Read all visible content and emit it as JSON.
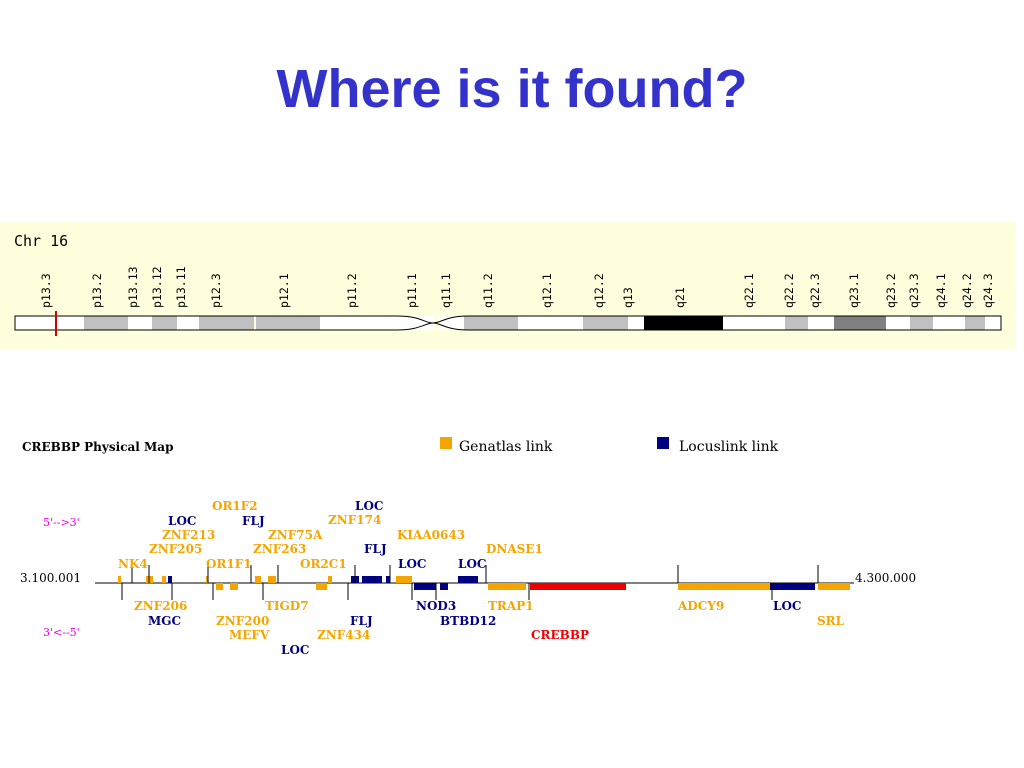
{
  "slide": {
    "title": "Where is it found?"
  },
  "ideogram": {
    "chromosome_label": "Chr 16",
    "bands": [
      {
        "name": "p13.3",
        "stain": "white"
      },
      {
        "name": "p13.2",
        "stain": "gray"
      },
      {
        "name": "p13.13",
        "stain": "white"
      },
      {
        "name": "p13.12",
        "stain": "gray"
      },
      {
        "name": "p13.11",
        "stain": "white"
      },
      {
        "name": "p12.3",
        "stain": "gray"
      },
      {
        "name": "p12.1",
        "stain": "gray"
      },
      {
        "name": "p11.2",
        "stain": "white"
      },
      {
        "name": "p11.1",
        "stain": "centromere"
      },
      {
        "name": "q11.1",
        "stain": "centromere"
      },
      {
        "name": "q11.2",
        "stain": "gray"
      },
      {
        "name": "q12.1",
        "stain": "white"
      },
      {
        "name": "q12.2",
        "stain": "gray"
      },
      {
        "name": "q13",
        "stain": "white"
      },
      {
        "name": "q21",
        "stain": "black"
      },
      {
        "name": "q22.1",
        "stain": "white"
      },
      {
        "name": "q22.2",
        "stain": "gray"
      },
      {
        "name": "q22.3",
        "stain": "white"
      },
      {
        "name": "q23.1",
        "stain": "darkgray"
      },
      {
        "name": "q23.2",
        "stain": "white"
      },
      {
        "name": "q23.3",
        "stain": "gray"
      },
      {
        "name": "q24.1",
        "stain": "white"
      },
      {
        "name": "q24.2",
        "stain": "gray"
      },
      {
        "name": "q24.3",
        "stain": "white"
      }
    ],
    "marker_band": "p13.3",
    "colors": {
      "background": "#ffffdd",
      "gray": "#c0c0c0",
      "darkgray": "#808080",
      "black": "#000000",
      "marker": "#cc0000"
    }
  },
  "physical_map": {
    "title": "CREBBP Physical Map",
    "legend": [
      {
        "label": "Genatlas link",
        "color": "#f5a500"
      },
      {
        "label": "Locuslink link",
        "color": "#000080"
      }
    ],
    "strand_top": "5'-->3'",
    "strand_bottom": "3'<--5'",
    "start_coord": "3.100.001",
    "end_coord": "4.300.000",
    "colors": {
      "genatlas": "#f5a500",
      "locuslink": "#000080",
      "highlight": "#ee0000",
      "strand": "#ee00ee",
      "axis": "#000000"
    },
    "genes_above": [
      {
        "label": "OR1F2",
        "type": "genatlas"
      },
      {
        "label": "LOC",
        "type": "locuslink"
      },
      {
        "label": "LOC",
        "type": "locuslink"
      },
      {
        "label": "FLJ",
        "type": "locuslink"
      },
      {
        "label": "ZNF174",
        "type": "genatlas"
      },
      {
        "label": "ZNF213",
        "type": "genatlas"
      },
      {
        "label": "ZNF75A",
        "type": "genatlas"
      },
      {
        "label": "KIAA0643",
        "type": "genatlas"
      },
      {
        "label": "ZNF205",
        "type": "genatlas"
      },
      {
        "label": "ZNF263",
        "type": "genatlas"
      },
      {
        "label": "FLJ",
        "type": "locuslink"
      },
      {
        "label": "DNASE1",
        "type": "genatlas"
      },
      {
        "label": "NK4",
        "type": "genatlas"
      },
      {
        "label": "OR1F1",
        "type": "genatlas"
      },
      {
        "label": "OR2C1",
        "type": "genatlas"
      },
      {
        "label": "LOC",
        "type": "locuslink"
      },
      {
        "label": "LOC",
        "type": "locuslink"
      }
    ],
    "genes_below": [
      {
        "label": "ZNF206",
        "type": "genatlas"
      },
      {
        "label": "TIGD7",
        "type": "genatlas"
      },
      {
        "label": "NOD3",
        "type": "locuslink"
      },
      {
        "label": "TRAP1",
        "type": "genatlas"
      },
      {
        "label": "ADCY9",
        "type": "genatlas"
      },
      {
        "label": "LOC",
        "type": "locuslink"
      },
      {
        "label": "MGC",
        "type": "locuslink"
      },
      {
        "label": "ZNF200",
        "type": "genatlas"
      },
      {
        "label": "FLJ",
        "type": "locuslink"
      },
      {
        "label": "BTBD12",
        "type": "locuslink"
      },
      {
        "label": "SRL",
        "type": "genatlas"
      },
      {
        "label": "MEFV",
        "type": "genatlas"
      },
      {
        "label": "ZNF434",
        "type": "genatlas"
      },
      {
        "label": "CREBBP",
        "type": "highlight"
      },
      {
        "label": "LOC",
        "type": "locuslink"
      }
    ]
  }
}
